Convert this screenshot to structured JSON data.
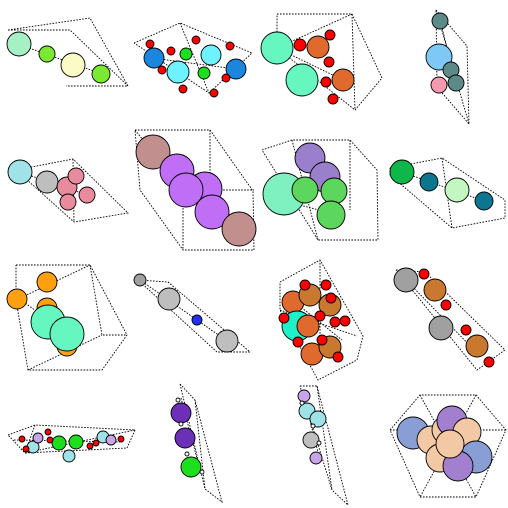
{
  "figure": {
    "type": "crystal-structure-grid",
    "rows": 4,
    "cols": 4,
    "background": "#ffffff",
    "edge_color": "#000000",
    "atom_palette": {
      "mint": "#a6f0c6",
      "lime": "#7be832",
      "cream": "#fbfbc8",
      "spring": "#66f6c0",
      "azure": "#1a86dd",
      "cyan": "#6ef2ff",
      "green": "#1de01d",
      "red": "#ff0000",
      "orange_brown": "#e06a2e",
      "teal_gray": "#5b8a88",
      "sky": "#7dc8f5",
      "pink": "#f39ab0",
      "light_cyan": "#9fe2e8",
      "silver": "#bebebe",
      "rose": "#e88b9c",
      "taupe": "#c28f8f",
      "violet": "#bf6ef5",
      "purple_gray": "#9a7fcc",
      "aquamarine": "#7ff0bf",
      "leaf": "#5cd65c",
      "emerald": "#0fb64a",
      "petrol": "#0c7690",
      "pale_green": "#c2f7c2",
      "amber": "#ffa010",
      "gray": "#a0a0a0",
      "blue": "#2030ff",
      "copper": "#c8782f",
      "turquoise": "#1ff0c8",
      "indigo": "#6b2fb8",
      "pale_lilac": "#c7a5e8",
      "slate_blue": "#8a9ed6",
      "peach": "#f2c9a4",
      "lavender": "#a27fcf",
      "white": "#ffffff"
    },
    "structures": [
      {
        "id": "s1",
        "atom_colors": [
          "mint",
          "lime",
          "cream",
          "lime"
        ]
      },
      {
        "id": "s2",
        "atom_colors": [
          "azure",
          "cyan",
          "green",
          "red"
        ]
      },
      {
        "id": "s3",
        "atom_colors": [
          "spring",
          "orange_brown",
          "red"
        ]
      },
      {
        "id": "s4",
        "atom_colors": [
          "teal_gray",
          "sky",
          "pink"
        ]
      },
      {
        "id": "s5",
        "atom_colors": [
          "light_cyan",
          "silver",
          "rose"
        ]
      },
      {
        "id": "s6",
        "atom_colors": [
          "taupe",
          "violet"
        ]
      },
      {
        "id": "s7",
        "atom_colors": [
          "purple_gray",
          "aquamarine",
          "leaf"
        ]
      },
      {
        "id": "s8",
        "atom_colors": [
          "emerald",
          "petrol",
          "pale_green"
        ]
      },
      {
        "id": "s9",
        "atom_colors": [
          "amber",
          "spring"
        ]
      },
      {
        "id": "s10",
        "atom_colors": [
          "gray",
          "silver",
          "blue"
        ]
      },
      {
        "id": "s11",
        "atom_colors": [
          "orange_brown",
          "copper",
          "red",
          "turquoise"
        ]
      },
      {
        "id": "s12",
        "atom_colors": [
          "gray",
          "copper",
          "red"
        ]
      },
      {
        "id": "s13",
        "atom_colors": [
          "green",
          "light_cyan",
          "red",
          "pale_lilac"
        ]
      },
      {
        "id": "s14",
        "atom_colors": [
          "indigo",
          "green",
          "white"
        ]
      },
      {
        "id": "s15",
        "atom_colors": [
          "pale_lilac",
          "light_cyan",
          "silver",
          "white"
        ]
      },
      {
        "id": "s16",
        "atom_colors": [
          "slate_blue",
          "peach",
          "lavender"
        ]
      }
    ]
  }
}
